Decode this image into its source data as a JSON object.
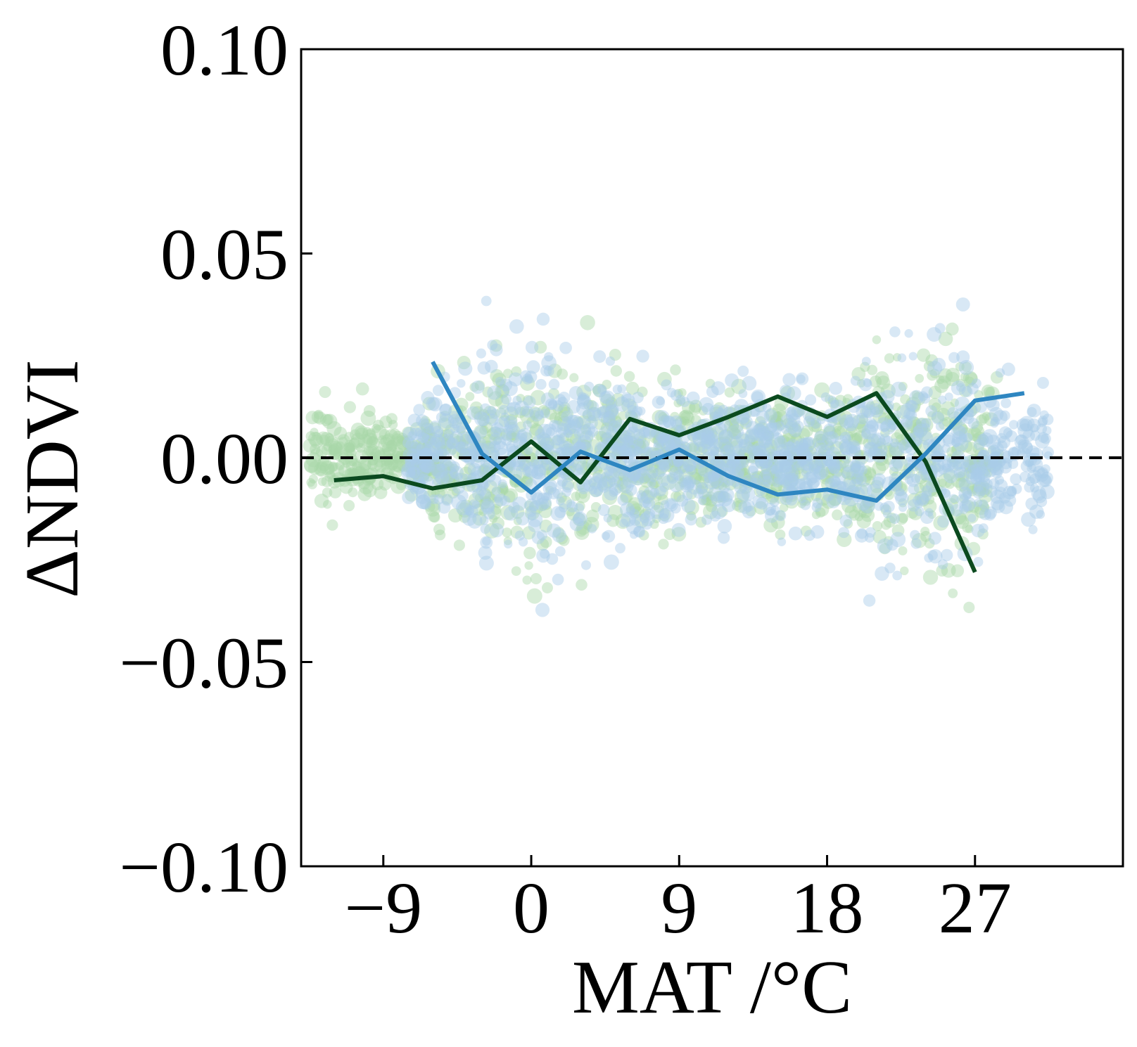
{
  "chart_data": {
    "type": "line",
    "xlabel": "MAT /°C",
    "ylabel": "ΔNDVI",
    "xlim": [
      -14,
      36
    ],
    "ylim": [
      -0.1,
      0.1
    ],
    "xticks": [
      -9,
      0,
      9,
      18,
      27
    ],
    "xtick_labels": [
      "−9",
      "0",
      "9",
      "18",
      "27"
    ],
    "yticks": [
      0.1,
      0.05,
      0.0,
      -0.05,
      -0.1
    ],
    "ytick_labels": [
      "0.10",
      "0.05",
      "0.00",
      "−0.05",
      "−0.10"
    ],
    "grid": false,
    "reference_line": {
      "y": 0.0,
      "style": "dashed",
      "color": "#000000"
    },
    "series": [
      {
        "color": "#0b4a1f",
        "scatter_color": "#a8d8a8",
        "x": [
          -12,
          -9,
          -6,
          -3,
          0,
          3,
          6,
          9,
          12,
          15,
          18,
          21,
          24,
          27
        ],
        "y": [
          -0.0055,
          -0.0045,
          -0.0075,
          -0.0055,
          0.004,
          -0.006,
          0.0095,
          0.0055,
          0.01,
          0.015,
          0.01,
          0.0158,
          -0.001,
          -0.028
        ]
      },
      {
        "color": "#2e86c1",
        "scatter_color": "#a9cce8",
        "x": [
          -6,
          -3,
          0,
          3,
          6,
          9,
          12,
          15,
          18,
          21,
          24,
          27,
          30
        ],
        "y": [
          0.0235,
          0.001,
          -0.0085,
          0.0015,
          -0.003,
          0.002,
          -0.0045,
          -0.009,
          -0.0078,
          -0.0105,
          0.001,
          0.014,
          0.0158
        ]
      }
    ]
  }
}
